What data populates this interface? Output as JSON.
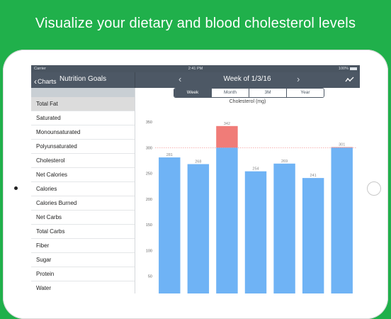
{
  "headline": "Visualize your dietary and blood cholesterol levels",
  "statusbar": {
    "carrier": "Carrier",
    "time": "2:41 PM",
    "battery": "100%"
  },
  "navbar": {
    "back_label": "Charts",
    "left_title": "Nutrition Goals",
    "week_title": "Week of 1/3/16",
    "prev_icon": "chevron-left-icon",
    "next_icon": "chevron-right-icon",
    "trend_icon": "trend-line-icon"
  },
  "sidebar": {
    "items": [
      {
        "label": "Total Fat",
        "selected": true
      },
      {
        "label": "Saturated"
      },
      {
        "label": "Monounsaturated"
      },
      {
        "label": "Polyunsaturated"
      },
      {
        "label": "Cholesterol"
      },
      {
        "label": "Net Calories"
      },
      {
        "label": "Calories"
      },
      {
        "label": "Calories Burned"
      },
      {
        "label": "Net Carbs"
      },
      {
        "label": "Total Carbs"
      },
      {
        "label": "Fiber"
      },
      {
        "label": "Sugar"
      },
      {
        "label": "Protein"
      },
      {
        "label": "Water"
      }
    ]
  },
  "segments": [
    {
      "label": "Week",
      "active": true
    },
    {
      "label": "Month"
    },
    {
      "label": "3M"
    },
    {
      "label": "Year"
    }
  ],
  "colors": {
    "bar": "#6fb3f5",
    "over": "#f07c78",
    "goal_line": "#f08a8a",
    "accent": "#4d5865"
  },
  "chart_data": {
    "type": "bar",
    "title": "Cholesterol (mg)",
    "goal": 300,
    "ylim": [
      0,
      350
    ],
    "yticks": [
      50,
      100,
      150,
      200,
      250,
      300,
      350
    ],
    "values": [
      281,
      268,
      342,
      254,
      269,
      241,
      301
    ],
    "labels": [
      "281",
      "268",
      "342",
      "254",
      "269",
      "241",
      "301"
    ]
  }
}
